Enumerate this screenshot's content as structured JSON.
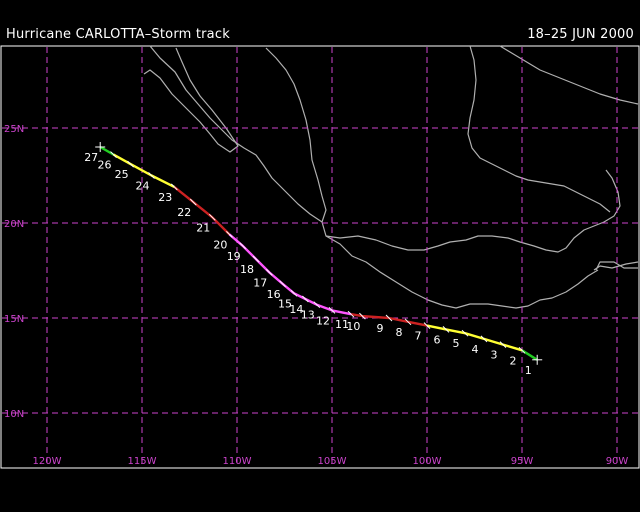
{
  "header": {
    "title": "Hurricane CARLOTTA–Storm track",
    "date_range": "18–25 JUN 2000"
  },
  "colors": {
    "background": "#000000",
    "grid": "#cc44cc",
    "coast": "#b0b0b0",
    "frame": "#ffffff",
    "tropical_depression": "#22cc22",
    "tropical_storm": "#ffff33",
    "hurricane_cat1": "#cc2222",
    "hurricane_cat2": "#ff55ff",
    "labels": "#ffffff"
  },
  "axes": {
    "lon_ticks": [
      "120W",
      "115W",
      "110W",
      "105W",
      "100W",
      "95W",
      "90W"
    ],
    "lat_ticks": [
      "25N",
      "20N",
      "15N",
      "10N"
    ]
  },
  "track": {
    "points": [
      {
        "n": "1",
        "lon": -94.2,
        "lat": 12.8
      },
      {
        "n": "2",
        "lon": -95.0,
        "lat": 13.3
      },
      {
        "n": "3",
        "lon": -96.0,
        "lat": 13.6
      },
      {
        "n": "4",
        "lon": -97.0,
        "lat": 13.9
      },
      {
        "n": "5",
        "lon": -98.0,
        "lat": 14.2
      },
      {
        "n": "6",
        "lon": -99.0,
        "lat": 14.4
      },
      {
        "n": "7",
        "lon": -100.0,
        "lat": 14.6
      },
      {
        "n": "8",
        "lon": -101.0,
        "lat": 14.8
      },
      {
        "n": "9",
        "lon": -102.0,
        "lat": 15.0
      },
      {
        "n": "10",
        "lon": -103.4,
        "lat": 15.1
      },
      {
        "n": "11",
        "lon": -104.0,
        "lat": 15.2
      },
      {
        "n": "12",
        "lon": -105.0,
        "lat": 15.4
      },
      {
        "n": "13",
        "lon": -105.8,
        "lat": 15.7
      },
      {
        "n": "14",
        "lon": -106.4,
        "lat": 16.0
      },
      {
        "n": "15",
        "lon": -107.0,
        "lat": 16.3
      },
      {
        "n": "16",
        "lon": -107.6,
        "lat": 16.8
      },
      {
        "n": "17",
        "lon": -108.3,
        "lat": 17.4
      },
      {
        "n": "18",
        "lon": -109.0,
        "lat": 18.1
      },
      {
        "n": "19",
        "lon": -109.7,
        "lat": 18.8
      },
      {
        "n": "20",
        "lon": -110.4,
        "lat": 19.4
      },
      {
        "n": "21",
        "lon": -111.3,
        "lat": 20.3
      },
      {
        "n": "22",
        "lon": -112.3,
        "lat": 21.1
      },
      {
        "n": "23",
        "lon": -113.3,
        "lat": 21.9
      },
      {
        "n": "24",
        "lon": -114.5,
        "lat": 22.5
      },
      {
        "n": "25",
        "lon": -115.6,
        "lat": 23.1
      },
      {
        "n": "26",
        "lon": -116.5,
        "lat": 23.6
      },
      {
        "n": "27",
        "lon": -117.2,
        "lat": 24.0
      }
    ],
    "segments": [
      {
        "from": 0,
        "to": 1,
        "stage": "tropical_depression"
      },
      {
        "from": 1,
        "to": 6,
        "stage": "tropical_storm"
      },
      {
        "from": 6,
        "to": 10,
        "stage": "hurricane_cat1"
      },
      {
        "from": 10,
        "to": 19,
        "stage": "hurricane_cat2"
      },
      {
        "from": 19,
        "to": 22,
        "stage": "hurricane_cat1"
      },
      {
        "from": 22,
        "to": 25,
        "stage": "tropical_storm"
      },
      {
        "from": 25,
        "to": 26,
        "stage": "tropical_depression"
      }
    ]
  }
}
